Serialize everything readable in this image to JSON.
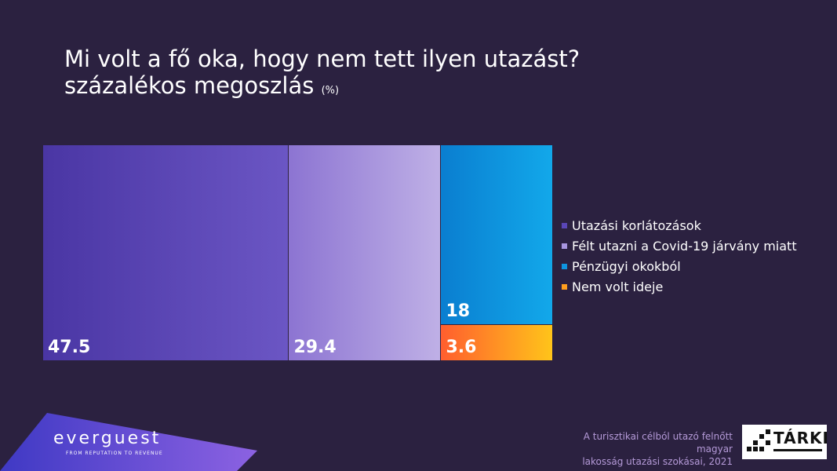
{
  "title": {
    "line1": "Mi volt a fő oka, hogy nem tett ilyen utazást?",
    "line2": "százalékos megoszlás",
    "unit": "(%)"
  },
  "chart_data": {
    "type": "treemap",
    "title": "Mi volt a fő oka, hogy nem tett ilyen utazást? százalékos megoszlás (%)",
    "categories": [
      "Utazási korlátozások",
      "Félt utazni a Covid-19 járvány miatt",
      "Pénzügyi okokból",
      "Nem volt ideje"
    ],
    "values": [
      47.5,
      29.4,
      18,
      3.6
    ],
    "labels": [
      "47.5",
      "29.4",
      "18",
      "3.6"
    ],
    "legend_position": "right",
    "colors": [
      [
        "#4a36a4",
        "#6b56c4"
      ],
      [
        "#8c74d2",
        "#bfb0e6"
      ],
      [
        "#0a7ed0",
        "#12a8ea"
      ],
      [
        "#ff5e2e",
        "#ffc41a"
      ]
    ]
  },
  "legend": [
    {
      "label": "Utazási korlátozások",
      "color": "#5a46b8"
    },
    {
      "label": "Félt utazni a Covid-19 járvány miatt",
      "color": "#a896e0"
    },
    {
      "label": "Pénzügyi okokból",
      "color": "#0e94df"
    },
    {
      "label": "Nem volt ideje",
      "color": "#ff9e1e"
    }
  ],
  "brand": {
    "name": "everguest",
    "tagline": "FROM REPUTATION TO REVENUE",
    "gradient": [
      "#4b3ec8",
      "#8b5fe0"
    ]
  },
  "source": {
    "line1": "A turisztikai célból utazó felnőtt magyar",
    "line2": "lakosság utazási szokásai, 2021"
  },
  "logo": {
    "name": "TÁRKI"
  }
}
